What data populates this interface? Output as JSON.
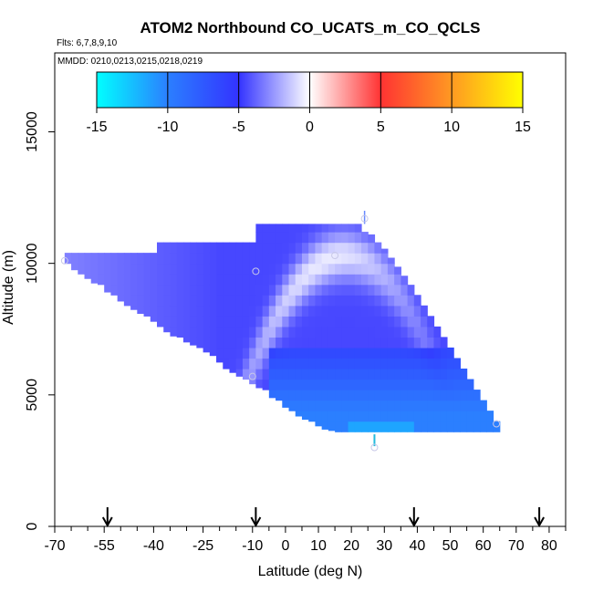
{
  "chart_data": {
    "type": "heatmap",
    "title": "ATOM2 Northbound CO_UCATS_m_CO_QCLS",
    "flights_note": "Flts: 6,7,8,9,10",
    "dates_note": "MMDD: 0210,0213,0215,0218,0219",
    "xlabel": "Latitude (deg N)",
    "ylabel": "Altitude (m)",
    "xlim": [
      -70,
      85
    ],
    "ylim": [
      0,
      18000
    ],
    "x_tick_labels": [
      "-70",
      "-55",
      "-40",
      "-25",
      "-10",
      "0",
      "10",
      "20",
      "30",
      "40",
      "50",
      "60",
      "70",
      "80"
    ],
    "x_tick_values": [
      -70,
      -55,
      -40,
      -25,
      -10,
      0,
      10,
      20,
      30,
      40,
      50,
      60,
      70,
      80
    ],
    "x_minor_ticks": [
      -65,
      -60,
      -50,
      -45,
      -35,
      -30,
      -20,
      -15,
      -5,
      5,
      15,
      25,
      35,
      45,
      55,
      65,
      75,
      85
    ],
    "y_tick_labels": [
      "0",
      "5000",
      "10000",
      "15000"
    ],
    "y_tick_values": [
      0,
      5000,
      10000,
      15000
    ],
    "colorbar": {
      "min": -15,
      "max": 15,
      "tick_labels": [
        "-15",
        "-10",
        "-5",
        "0",
        "5",
        "10",
        "15"
      ],
      "tick_values": [
        -15,
        -10,
        -5,
        0,
        5,
        10,
        15
      ],
      "colors": [
        "#00ffff",
        "#2b7fff",
        "#3333ff",
        "#ffffff",
        "#ff3333",
        "#ff9922",
        "#ffff00"
      ]
    },
    "arrows_latitude": [
      -54,
      -9,
      39,
      77
    ],
    "profile_markers": [
      {
        "lat": -67,
        "alt": 10100
      },
      {
        "lat": -9,
        "alt": 9700
      },
      {
        "lat": 15,
        "alt": 10300
      },
      {
        "lat": 24,
        "alt": 11700
      },
      {
        "lat": -10,
        "alt": 5700
      },
      {
        "lat": 27,
        "alt": 3000
      },
      {
        "lat": 64,
        "alt": 3900
      }
    ],
    "grid_cells": {
      "lat_bin_width_deg": 2,
      "alt_bin_height_m": 400,
      "footprint": {
        "west_edge_lat": -67,
        "east_edge_lat": 65,
        "bottom_alt": 3500,
        "outer_top": [
          [
            -67,
            10400
          ],
          [
            -40,
            10400
          ],
          [
            -40,
            10900
          ],
          [
            -10,
            10900
          ],
          [
            -10,
            11500
          ],
          [
            22,
            11500
          ],
          [
            28,
            10900
          ],
          [
            35,
            9700
          ],
          [
            42,
            8500
          ],
          [
            48,
            7300
          ],
          [
            54,
            6100
          ],
          [
            60,
            4900
          ],
          [
            65,
            3900
          ]
        ],
        "outer_bottom": [
          [
            -67,
            10000
          ],
          [
            -62,
            9600
          ],
          [
            -55,
            9000
          ],
          [
            -48,
            8400
          ],
          [
            -40,
            7800
          ],
          [
            -35,
            7300
          ],
          [
            -28,
            6900
          ],
          [
            -22,
            6500
          ],
          [
            -18,
            6000
          ],
          [
            -11,
            5500
          ],
          [
            -7,
            5200
          ],
          [
            -2,
            4700
          ],
          [
            4,
            4200
          ],
          [
            12,
            3700
          ],
          [
            20,
            3500
          ],
          [
            65,
            3500
          ]
        ]
      },
      "value_model": {
        "background": -4.5,
        "near_zero_band_center_lat": 18,
        "near_zero_band_peak_alt": 10300,
        "lower_core_value": -10,
        "lower_core_top_alt": 7000
      }
    }
  }
}
